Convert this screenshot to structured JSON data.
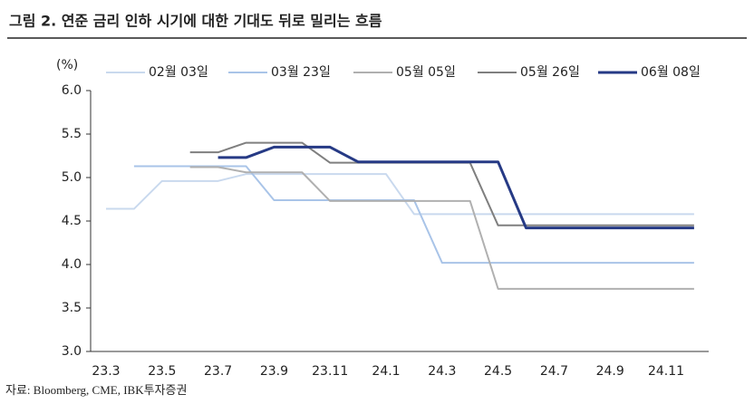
{
  "chart_data": {
    "type": "line",
    "title": "그림 2. 연준 금리 인하 시기에 대한 기대도 뒤로 밀리는 흐름",
    "y_unit": "(%)",
    "source": "자료: Bloomberg, CME, IBK투자증권",
    "categories": [
      "23.3",
      null,
      "23.5",
      null,
      "23.7",
      null,
      "23.9",
      null,
      "23.11",
      null,
      "24.1",
      null,
      "24.3",
      null,
      "24.5",
      null,
      "24.7",
      null,
      "24.9",
      null,
      "24.11",
      null
    ],
    "ylim": [
      3,
      6
    ],
    "yticks": [
      {
        "value": 3,
        "label": "3.0"
      },
      {
        "value": 3.5,
        "label": "3.5"
      },
      {
        "value": 4,
        "label": "4.0"
      },
      {
        "value": 4.5,
        "label": "4.5"
      },
      {
        "value": 5,
        "label": "5.0"
      },
      {
        "value": 5.5,
        "label": "5.5"
      },
      {
        "value": 6,
        "label": "6.0"
      }
    ],
    "grid": false,
    "legend": "top",
    "series": [
      {
        "name": "02월 03일",
        "color": "#c9d9ee",
        "width": 2,
        "values": [
          4.64,
          4.64,
          4.96,
          4.96,
          4.96,
          5.04,
          5.04,
          5.04,
          5.04,
          5.04,
          5.04,
          4.58,
          4.58,
          4.58,
          4.58,
          4.58,
          4.58,
          4.58,
          4.58,
          4.58,
          4.58,
          4.58
        ]
      },
      {
        "name": "03월 23일",
        "color": "#a9c4e8",
        "width": 2,
        "values": [
          null,
          5.13,
          5.13,
          5.13,
          5.13,
          5.13,
          4.74,
          4.74,
          4.74,
          4.74,
          4.74,
          4.74,
          4.02,
          4.02,
          4.02,
          4.02,
          4.02,
          4.02,
          4.02,
          4.02,
          4.02,
          4.02
        ]
      },
      {
        "name": "05월 05일",
        "color": "#b0b0b0",
        "width": 2,
        "values": [
          null,
          null,
          null,
          5.12,
          5.12,
          5.06,
          5.06,
          5.06,
          4.73,
          4.73,
          4.73,
          4.73,
          4.73,
          4.73,
          3.72,
          3.72,
          3.72,
          3.72,
          3.72,
          3.72,
          3.72,
          3.72
        ]
      },
      {
        "name": "05월 26일",
        "color": "#7f7f7f",
        "width": 2,
        "values": [
          null,
          null,
          null,
          5.29,
          5.29,
          5.4,
          5.4,
          5.4,
          5.17,
          5.17,
          5.17,
          5.17,
          5.17,
          5.17,
          4.45,
          4.45,
          4.45,
          4.45,
          4.45,
          4.45,
          4.45,
          4.45
        ]
      },
      {
        "name": "06월 08일",
        "color": "#263a85",
        "width": 3,
        "values": [
          null,
          null,
          null,
          null,
          5.23,
          5.23,
          5.35,
          5.35,
          5.35,
          5.18,
          5.18,
          5.18,
          5.18,
          5.18,
          5.18,
          4.42,
          4.42,
          4.42,
          4.42,
          4.42,
          4.42,
          4.42
        ]
      }
    ]
  }
}
